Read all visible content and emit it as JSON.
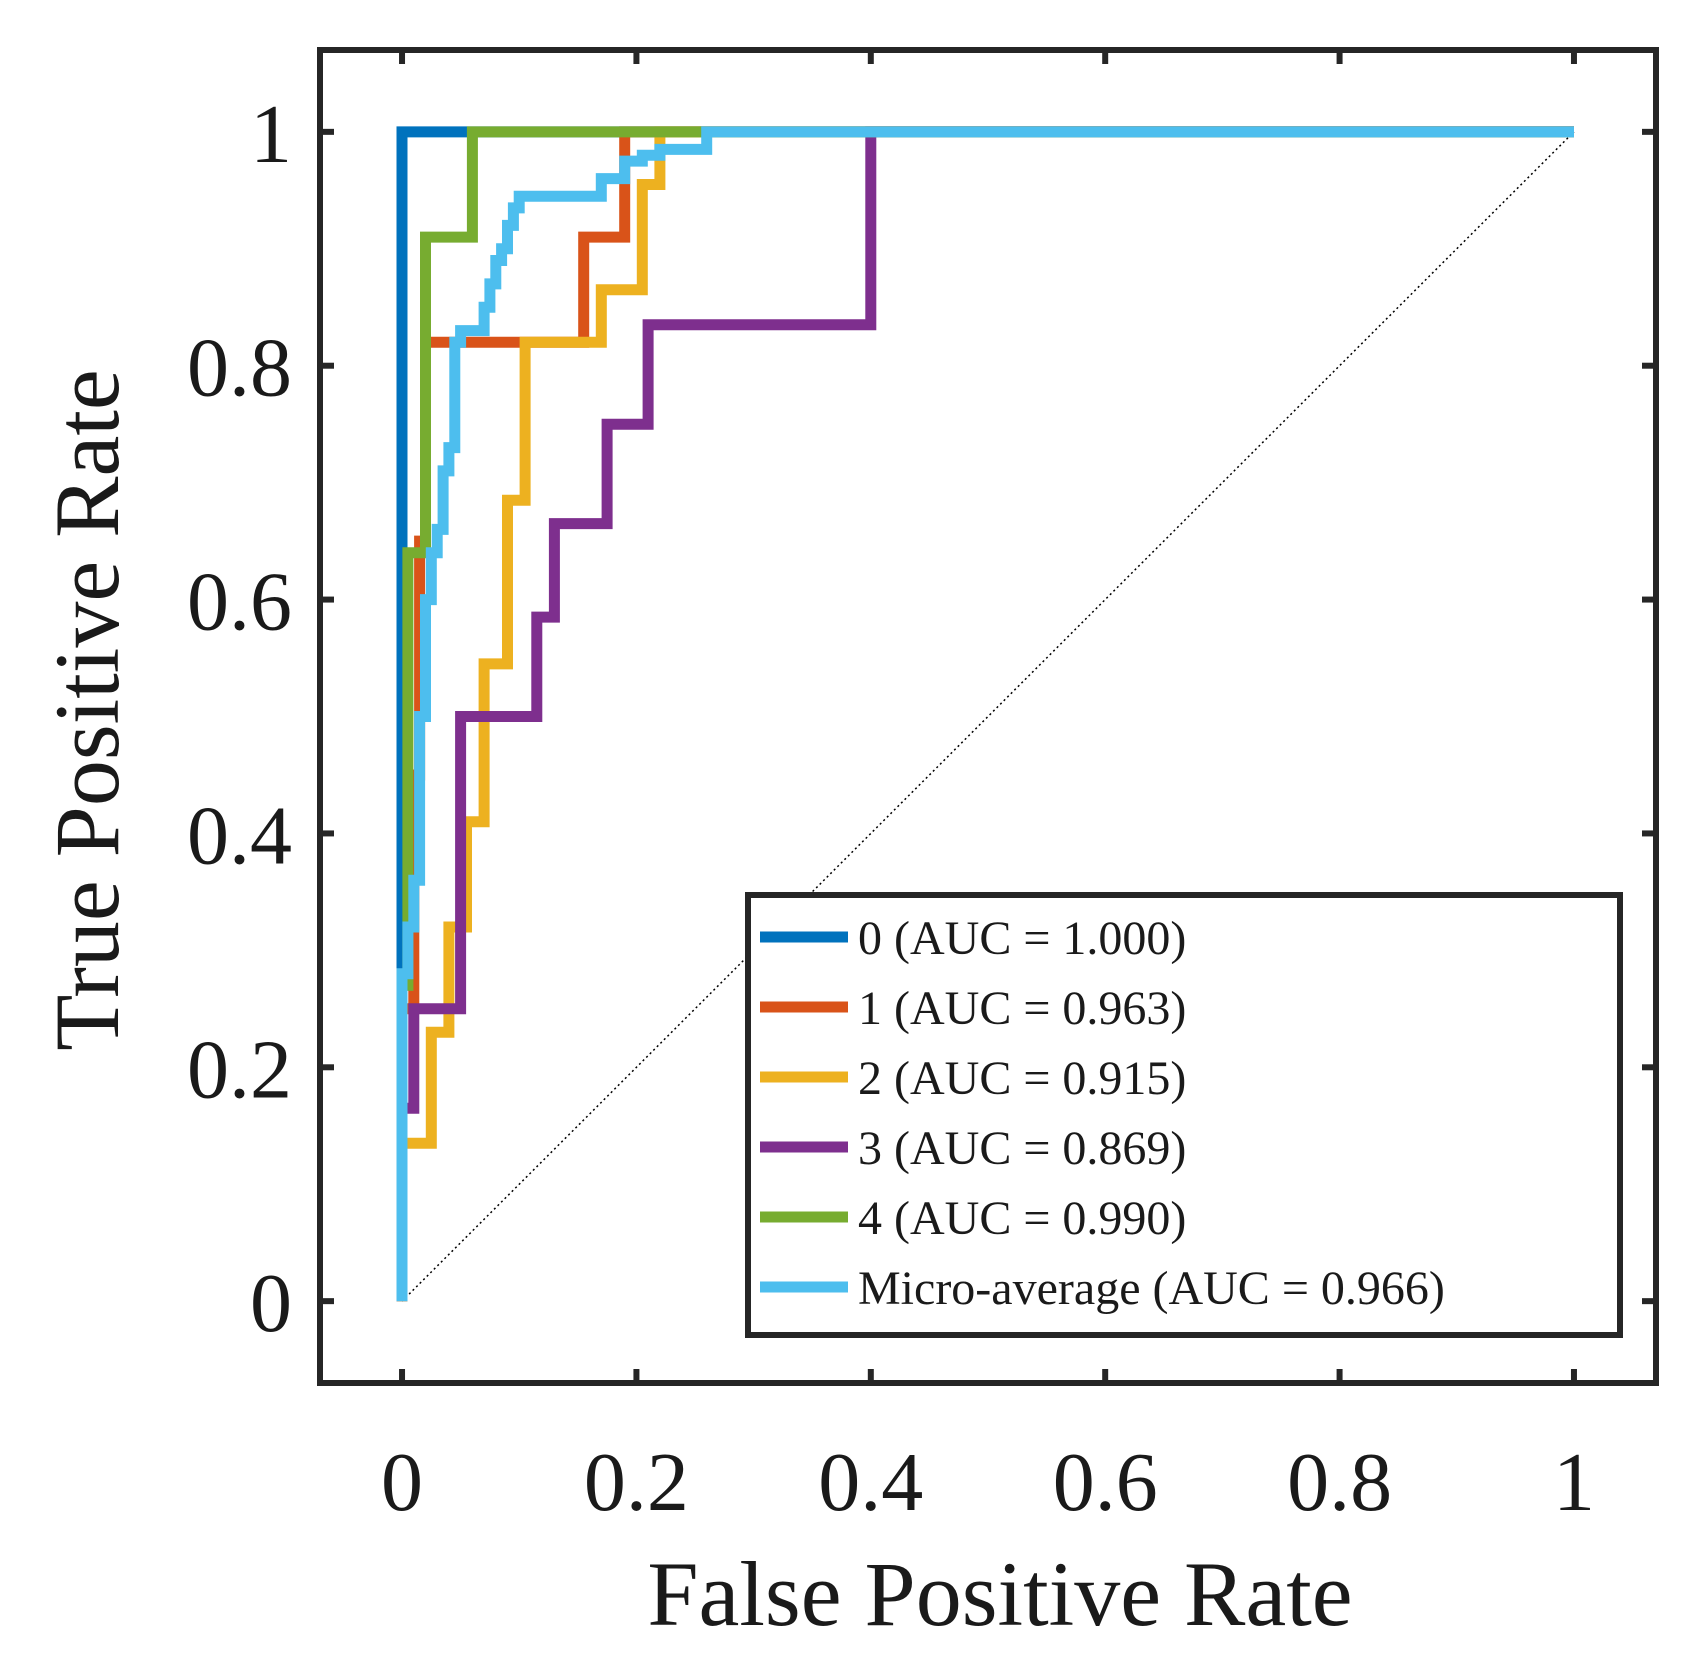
{
  "chart_data": {
    "type": "line",
    "xlabel": "False Positive Rate",
    "ylabel": "True Positive Rate",
    "xlim": [
      -0.07,
      1.07
    ],
    "ylim": [
      -0.07,
      1.07
    ],
    "xticks": [
      0,
      0.2,
      0.4,
      0.6,
      0.8,
      1
    ],
    "yticks": [
      0,
      0.2,
      0.4,
      0.6,
      0.8,
      1
    ],
    "xtick_labels": [
      "0",
      "0.2",
      "0.4",
      "0.6",
      "0.8",
      "1"
    ],
    "ytick_labels": [
      "0",
      "0.2",
      "0.4",
      "0.6",
      "0.8",
      "1"
    ],
    "grid": false,
    "legend_position": "bottom-right",
    "chance_line": {
      "x": [
        0,
        1
      ],
      "y": [
        0,
        1
      ],
      "style": "dotted",
      "color": "#000000"
    },
    "series": [
      {
        "name": "0 (AUC = 1.000)",
        "color": "#0072BD",
        "x": [
          0,
          0,
          1
        ],
        "y": [
          0,
          1,
          1
        ]
      },
      {
        "name": "1 (AUC = 0.963)",
        "color": "#D95319",
        "x": [
          0,
          0,
          0.01,
          0.01,
          0.015,
          0.015,
          0.02,
          0.02,
          0.11,
          0.11,
          0.155,
          0.155,
          0.19,
          0.19,
          1
        ],
        "y": [
          0,
          0.25,
          0.25,
          0.45,
          0.45,
          0.65,
          0.65,
          0.82,
          0.82,
          0.82,
          0.82,
          0.91,
          0.91,
          1,
          1
        ]
      },
      {
        "name": "2 (AUC = 0.915)",
        "color": "#EDB120",
        "x": [
          0,
          0,
          0.01,
          0.01,
          0.025,
          0.025,
          0.04,
          0.04,
          0.055,
          0.055,
          0.07,
          0.07,
          0.09,
          0.09,
          0.105,
          0.105,
          0.12,
          0.12,
          0.17,
          0.17,
          0.205,
          0.205,
          0.22,
          0.22,
          1
        ],
        "y": [
          0,
          0.135,
          0.135,
          0.135,
          0.135,
          0.23,
          0.23,
          0.32,
          0.32,
          0.41,
          0.41,
          0.545,
          0.545,
          0.685,
          0.685,
          0.82,
          0.82,
          0.82,
          0.82,
          0.865,
          0.865,
          0.955,
          0.955,
          1,
          1
        ]
      },
      {
        "name": "3 (AUC = 0.869)",
        "color": "#7E2F8E",
        "x": [
          0,
          0,
          0.01,
          0.01,
          0.05,
          0.05,
          0.115,
          0.115,
          0.13,
          0.13,
          0.175,
          0.175,
          0.21,
          0.21,
          0.4,
          0.4,
          1
        ],
        "y": [
          0,
          0.165,
          0.165,
          0.25,
          0.25,
          0.5,
          0.5,
          0.585,
          0.585,
          0.665,
          0.665,
          0.75,
          0.75,
          0.835,
          0.835,
          1,
          1
        ]
      },
      {
        "name": "4 (AUC = 0.990)",
        "color": "#77AC30",
        "x": [
          0,
          0,
          0.005,
          0.005,
          0.01,
          0.01,
          0.02,
          0.02,
          0.06,
          0.06,
          1
        ],
        "y": [
          0,
          0.27,
          0.27,
          0.64,
          0.64,
          0.64,
          0.64,
          0.91,
          0.91,
          1,
          1
        ]
      },
      {
        "name": "Micro-average (AUC = 0.966)",
        "color": "#4DBEEE",
        "x": [
          0,
          0,
          0.005,
          0.005,
          0.01,
          0.01,
          0.015,
          0.015,
          0.02,
          0.02,
          0.025,
          0.025,
          0.03,
          0.03,
          0.035,
          0.035,
          0.04,
          0.04,
          0.045,
          0.045,
          0.05,
          0.05,
          0.07,
          0.07,
          0.075,
          0.075,
          0.08,
          0.08,
          0.085,
          0.085,
          0.09,
          0.09,
          0.095,
          0.095,
          0.1,
          0.1,
          0.115,
          0.115,
          0.17,
          0.17,
          0.19,
          0.19,
          0.205,
          0.205,
          0.22,
          0.22,
          0.26,
          0.26,
          1
        ],
        "y": [
          0,
          0.28,
          0.28,
          0.32,
          0.32,
          0.36,
          0.36,
          0.5,
          0.5,
          0.6,
          0.6,
          0.64,
          0.64,
          0.66,
          0.66,
          0.71,
          0.71,
          0.73,
          0.73,
          0.82,
          0.82,
          0.83,
          0.83,
          0.85,
          0.85,
          0.87,
          0.87,
          0.89,
          0.89,
          0.9,
          0.9,
          0.92,
          0.92,
          0.935,
          0.935,
          0.945,
          0.945,
          0.945,
          0.945,
          0.96,
          0.96,
          0.975,
          0.975,
          0.98,
          0.98,
          0.985,
          0.985,
          1,
          1
        ]
      }
    ]
  }
}
